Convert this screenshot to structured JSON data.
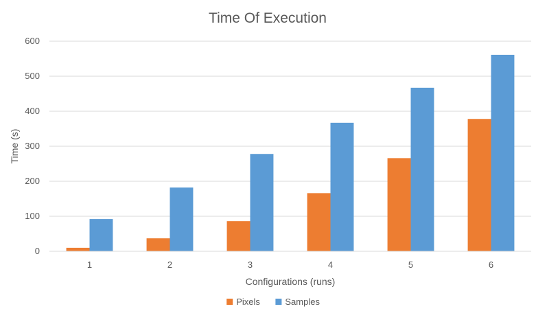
{
  "chart_data": {
    "type": "bar",
    "title": "Time Of Execution",
    "xlabel": "Configurations (runs)",
    "ylabel": "Time (s)",
    "categories": [
      "1",
      "2",
      "3",
      "4",
      "5",
      "6"
    ],
    "ylim": [
      0,
      600
    ],
    "yticks": [
      0,
      100,
      200,
      300,
      400,
      500,
      600
    ],
    "grid": true,
    "legend_position": "bottom",
    "series": [
      {
        "name": "Pixels",
        "color": "#ED7D31",
        "values": [
          10,
          37,
          86,
          166,
          266,
          378
        ]
      },
      {
        "name": "Samples",
        "color": "#5B9BD5",
        "values": [
          92,
          182,
          278,
          367,
          467,
          561
        ]
      }
    ]
  }
}
